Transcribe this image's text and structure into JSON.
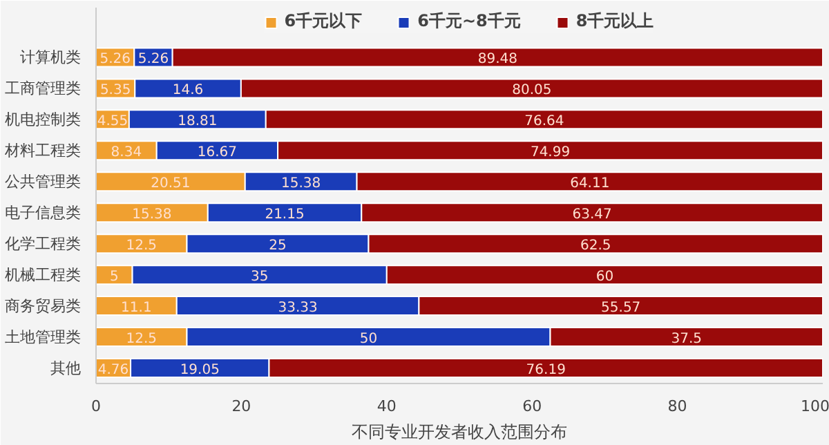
{
  "chart_data": {
    "type": "bar",
    "orientation": "horizontal",
    "stacked": true,
    "xlabel": "不同专业开发者收入范围分布",
    "categories": [
      "计算机类",
      "工商管理类",
      "机电控制类",
      "材料工程类",
      "公共管理类",
      "电子信息类",
      "化学工程类",
      "机械工程类",
      "商务贸易类",
      "土地管理类",
      "其他"
    ],
    "series": [
      {
        "name": "6千元以下",
        "color": "#f0a030",
        "values": [
          5.26,
          5.35,
          4.55,
          8.34,
          20.51,
          15.38,
          12.5,
          5,
          11.1,
          12.5,
          4.76
        ]
      },
      {
        "name": "6千元~8千元",
        "color": "#1a3cb8",
        "values": [
          5.26,
          14.6,
          18.81,
          16.67,
          15.38,
          21.15,
          25,
          35,
          33.33,
          50,
          19.05
        ]
      },
      {
        "name": "8千元以上",
        "color": "#9a0a0a",
        "values": [
          89.48,
          80.05,
          76.64,
          74.99,
          64.11,
          63.47,
          62.5,
          60,
          55.57,
          37.5,
          76.19
        ]
      }
    ],
    "xlim": [
      0,
      100
    ],
    "xticks": [
      0,
      20,
      40,
      60,
      80,
      100
    ],
    "data_labels": true,
    "legend": "top",
    "grid": false
  }
}
